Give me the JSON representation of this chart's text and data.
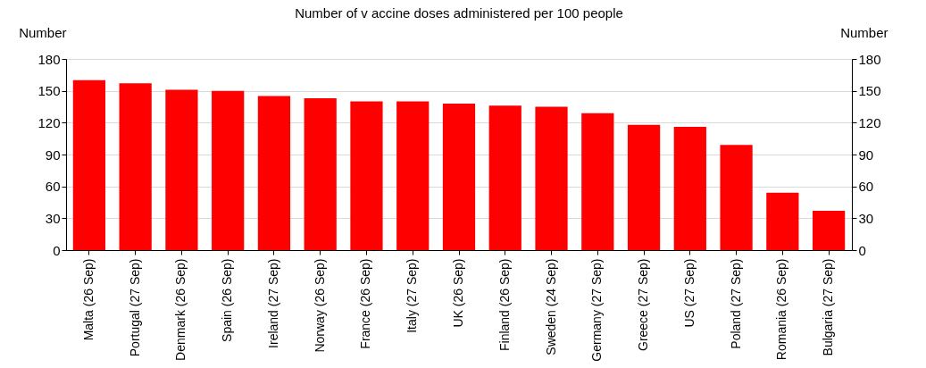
{
  "chart_data": {
    "type": "bar",
    "title": "Number of v accine doses administered per 100 people",
    "ylabel": "Number",
    "y2label": "Number",
    "categories": [
      "Malta (26 Sep)",
      "Portugal (27 Sep)",
      "Denmark (26 Sep)",
      "Spain (26 Sep)",
      "Ireland (27 Sep)",
      "Norway (26 Sep)",
      "France (26 Sep)",
      "Italy (27 Sep)",
      "UK (26 Sep)",
      "Finland (26 Sep)",
      "Sweden (24 Sep)",
      "Germany (27 Sep)",
      "Greece (27 Sep)",
      "US (27 Sep)",
      "Poland (27 Sep)",
      "Romania (26 Sep)",
      "Bulgaria (27 Sep)"
    ],
    "values": [
      160,
      157,
      151,
      150,
      145,
      143,
      140,
      140,
      138,
      136,
      135,
      129,
      118,
      116,
      99,
      54,
      37
    ],
    "color": "#ff0000",
    "ylim": [
      0,
      180
    ],
    "yticks": [
      0,
      30,
      60,
      90,
      120,
      150,
      180
    ],
    "y2lim": [
      0,
      180
    ],
    "y2ticks": [
      0,
      30,
      60,
      90,
      120,
      150,
      180
    ],
    "grid": "y"
  }
}
